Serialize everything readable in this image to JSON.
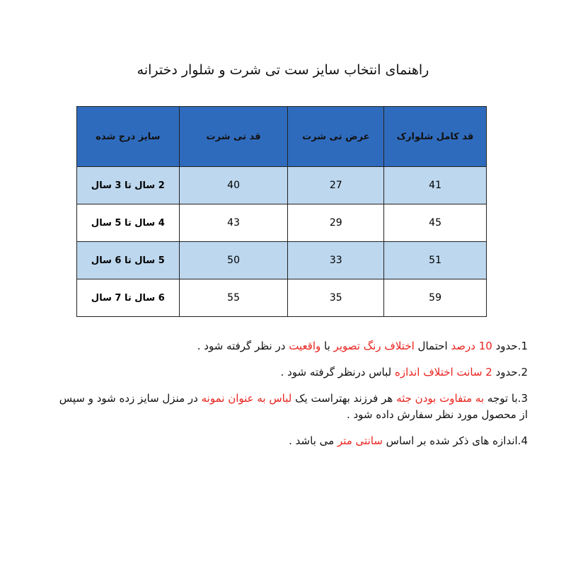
{
  "title": "راهنمای انتخاب سایز ست تی شرت و شلوار دخترانه",
  "table": {
    "header": [
      "سایز درج شده",
      "قد تی شرت",
      "عرض تی شرت",
      "قد کامل شلوارک"
    ],
    "rows": [
      [
        "2 سال تا 3 سال",
        40,
        27,
        41
      ],
      [
        "4 سال تا 5 سال",
        43,
        29,
        45
      ],
      [
        "5 سال تا 6 سال",
        50,
        33,
        51
      ],
      [
        "6 سال تا 7 سال",
        55,
        35,
        59
      ]
    ]
  },
  "notes": [
    [
      {
        "text": "1.حدود "
      },
      {
        "text": "10 درصد",
        "color": "#e8231e"
      },
      {
        "text": " احتمال "
      },
      {
        "text": "اختلاف رنگ تصویر",
        "color": "#e8231e"
      },
      {
        "text": " با "
      },
      {
        "text": "واقعیت",
        "color": "#e8231e"
      },
      {
        "text": " در نظر گرفته شود ."
      }
    ],
    [
      {
        "text": "2.حدود "
      },
      {
        "text": "2 سانت اختلاف اندازه",
        "color": "#e8231e"
      },
      {
        "text": " لباس درنظر گرفته شود ."
      }
    ],
    [
      {
        "text": "3.با توجه "
      },
      {
        "text": "به متفاوت بودن جثه",
        "color": "#e8231e"
      },
      {
        "text": " هر فرزند بهتراست یک "
      },
      {
        "text": "لباس به عنوان نمونه",
        "color": "#e8231e"
      },
      {
        "text": " در منزل سایز زده شود و سپس از محصول مورد نظر سفارش داده شود ."
      }
    ],
    [
      {
        "text": "4.اندازه های ذکر شده بر اساس "
      },
      {
        "text": "سانتی متر",
        "color": "#e8231e"
      },
      {
        "text": " می باشد ."
      }
    ]
  ]
}
